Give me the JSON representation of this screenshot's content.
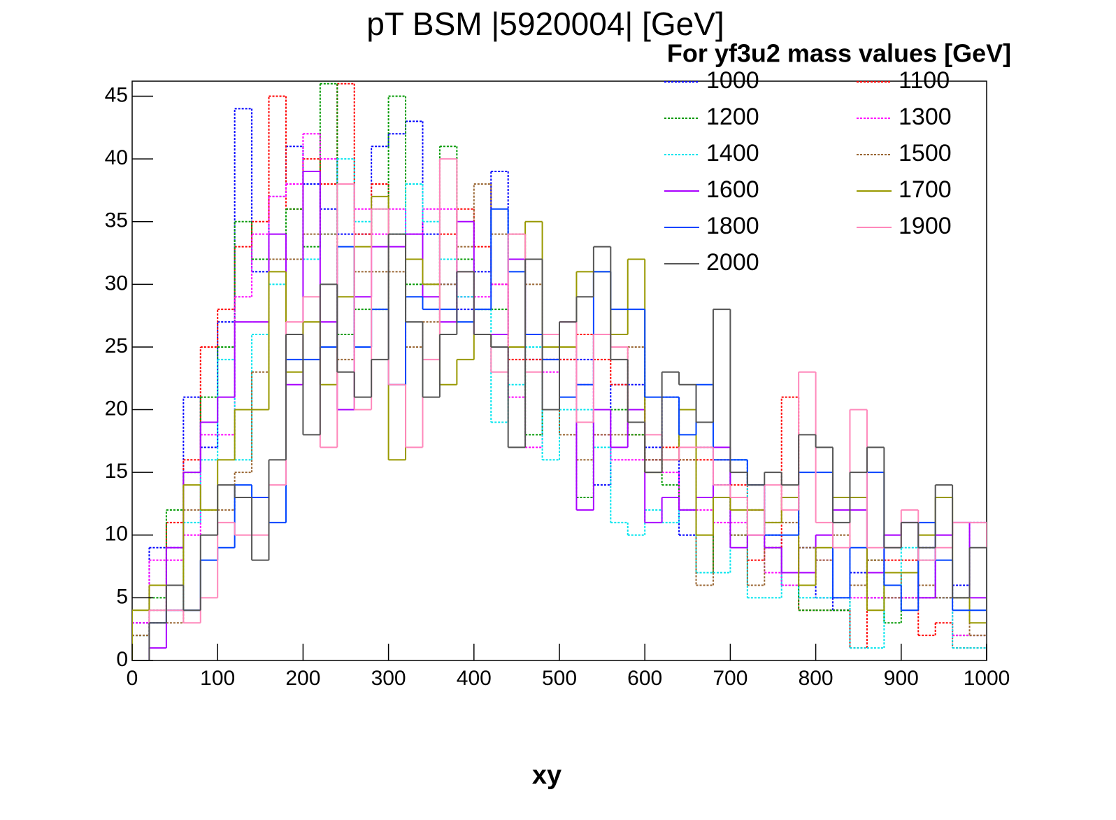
{
  "chart_data": {
    "type": "histogram",
    "title": "pT BSM |5920004| [GeV]",
    "x_label": "xy",
    "legend_title": "For yf3u2 mass values [GeV]",
    "legend_position": "top-right",
    "bins": [
      0,
      20,
      40,
      60,
      80,
      100,
      120,
      140,
      160,
      180,
      200,
      220,
      240,
      260,
      280,
      300,
      320,
      340,
      360,
      380,
      400,
      420,
      440,
      460,
      480,
      500,
      520,
      540,
      560,
      580,
      600,
      620,
      640,
      660,
      680,
      700,
      720,
      740,
      760,
      780,
      800,
      820,
      840,
      860,
      880,
      900,
      920,
      940,
      960,
      980,
      1000
    ],
    "xlim": [
      0,
      1000
    ],
    "ylim": [
      0,
      46.2
    ],
    "xticks": [
      0,
      100,
      200,
      300,
      400,
      500,
      600,
      700,
      800,
      900,
      1000
    ],
    "yticks": [
      0,
      5,
      10,
      15,
      20,
      25,
      30,
      35,
      40,
      45
    ],
    "series": [
      {
        "name": "1000",
        "color": "#0000ff",
        "line_style": "dotted",
        "values": [
          3,
          9,
          9,
          21,
          17,
          27,
          44,
          31,
          37,
          41,
          38,
          36,
          34,
          34,
          41,
          42,
          43,
          34,
          30,
          28,
          31,
          39,
          32,
          24,
          24,
          24,
          24,
          14,
          22,
          22,
          17,
          21,
          10,
          17,
          14,
          16,
          14,
          10,
          7,
          9,
          5,
          4,
          7,
          5,
          5,
          5,
          9,
          5,
          6,
          11
        ]
      },
      {
        "name": "1100",
        "color": "#ff0000",
        "line_style": "dotted",
        "values": [
          2,
          4,
          11,
          16,
          25,
          28,
          33,
          35,
          45,
          36,
          40,
          38,
          46,
          34,
          38,
          34,
          32,
          30,
          34,
          36,
          33,
          30,
          24,
          24,
          24,
          24,
          26,
          24,
          22,
          18,
          16,
          17,
          16,
          16,
          16,
          14,
          8,
          9,
          21,
          4,
          4,
          4,
          1,
          8,
          8,
          8,
          2,
          3,
          1,
          1
        ]
      },
      {
        "name": "1200",
        "color": "#009900",
        "line_style": "dotted",
        "values": [
          2,
          5,
          12,
          15,
          21,
          25,
          35,
          32,
          32,
          36,
          33,
          46,
          26,
          28,
          28,
          45,
          30,
          30,
          41,
          32,
          28,
          28,
          25,
          18,
          25,
          25,
          13,
          20,
          20,
          18,
          16,
          14,
          12,
          7,
          13,
          10,
          12,
          9,
          6,
          4,
          4,
          4,
          6,
          8,
          3,
          5,
          5,
          5,
          2,
          2
        ]
      },
      {
        "name": "1300",
        "color": "#ff00ff",
        "line_style": "dotted",
        "values": [
          3,
          8,
          8,
          10,
          18,
          18,
          29,
          34,
          37,
          38,
          42,
          40,
          38,
          36,
          34,
          36,
          34,
          36,
          36,
          29,
          29,
          30,
          21,
          17,
          23,
          25,
          22,
          18,
          16,
          16,
          16,
          15,
          12,
          12,
          11,
          11,
          12,
          7,
          6,
          6,
          8,
          5,
          5,
          5,
          5,
          5,
          5,
          5,
          2,
          2
        ]
      },
      {
        "name": "1400",
        "color": "#00e5ee",
        "line_style": "dotted",
        "values": [
          2,
          4,
          4,
          11,
          16,
          24,
          16,
          26,
          30,
          32,
          32,
          34,
          40,
          35,
          36,
          34,
          38,
          35,
          32,
          29,
          28,
          19,
          22,
          25,
          16,
          20,
          20,
          17,
          11,
          10,
          12,
          11,
          12,
          7,
          7,
          16,
          5,
          5,
          7,
          5,
          5,
          5,
          1,
          1,
          6,
          9,
          8,
          5,
          1,
          1
        ]
      },
      {
        "name": "1500",
        "color": "#996633",
        "line_style": "dotted",
        "values": [
          2,
          3,
          3,
          12,
          12,
          12,
          15,
          23,
          32,
          32,
          34,
          34,
          24,
          31,
          31,
          31,
          25,
          27,
          30,
          33,
          38,
          34,
          34,
          30,
          25,
          18,
          16,
          18,
          18,
          25,
          16,
          16,
          16,
          6,
          13,
          10,
          6,
          11,
          11,
          9,
          8,
          10,
          6,
          8,
          5,
          7,
          6,
          5,
          5,
          2
        ]
      },
      {
        "name": "1600",
        "color": "#aa00ff",
        "line_style": "solid",
        "values": [
          0,
          1,
          9,
          15,
          19,
          21,
          27,
          27,
          34,
          22,
          39,
          27,
          20,
          29,
          33,
          33,
          34,
          29,
          27,
          35,
          26,
          26,
          32,
          26,
          26,
          27,
          12,
          20,
          17,
          20,
          11,
          13,
          12,
          13,
          17,
          9,
          10,
          9,
          7,
          7,
          10,
          12,
          12,
          7,
          10,
          11,
          5,
          10,
          11,
          5
        ]
      },
      {
        "name": "1700",
        "color": "#999900",
        "line_style": "solid",
        "values": [
          4,
          6,
          6,
          14,
          12,
          16,
          20,
          20,
          31,
          23,
          27,
          22,
          29,
          33,
          37,
          16,
          32,
          30,
          22,
          24,
          26,
          25,
          25,
          35,
          25,
          25,
          31,
          31,
          26,
          32,
          15,
          16,
          20,
          10,
          13,
          12,
          12,
          11,
          13,
          6,
          9,
          13,
          13,
          4,
          7,
          7,
          10,
          13,
          5,
          3
        ]
      },
      {
        "name": "1800",
        "color": "#0044ff",
        "line_style": "solid",
        "values": [
          0,
          3,
          4,
          4,
          8,
          9,
          14,
          13,
          11,
          24,
          24,
          25,
          33,
          25,
          28,
          22,
          29,
          28,
          28,
          27,
          28,
          36,
          31,
          26,
          24,
          21,
          22,
          31,
          28,
          28,
          21,
          21,
          18,
          22,
          16,
          16,
          14,
          10,
          10,
          15,
          15,
          5,
          9,
          15,
          6,
          4,
          11,
          8,
          4,
          4
        ]
      },
      {
        "name": "1900",
        "color": "#ff88bb",
        "line_style": "solid",
        "values": [
          0,
          4,
          4,
          3,
          5,
          11,
          10,
          10,
          14,
          27,
          29,
          17,
          38,
          20,
          36,
          22,
          17,
          24,
          40,
          31,
          26,
          23,
          34,
          23,
          26,
          27,
          19,
          26,
          25,
          19,
          18,
          16,
          17,
          17,
          14,
          13,
          10,
          14,
          12,
          23,
          11,
          9,
          20,
          9,
          9,
          12,
          8,
          9,
          11,
          11
        ]
      },
      {
        "name": "2000",
        "color": "#555555",
        "line_style": "solid",
        "values": [
          0,
          3,
          6,
          4,
          10,
          14,
          13,
          8,
          16,
          26,
          18,
          30,
          23,
          21,
          24,
          34,
          27,
          21,
          26,
          31,
          26,
          25,
          17,
          32,
          20,
          27,
          29,
          33,
          24,
          19,
          15,
          23,
          22,
          19,
          28,
          15,
          14,
          15,
          14,
          18,
          17,
          11,
          15,
          17,
          9,
          11,
          9,
          14,
          5,
          9
        ]
      }
    ]
  }
}
